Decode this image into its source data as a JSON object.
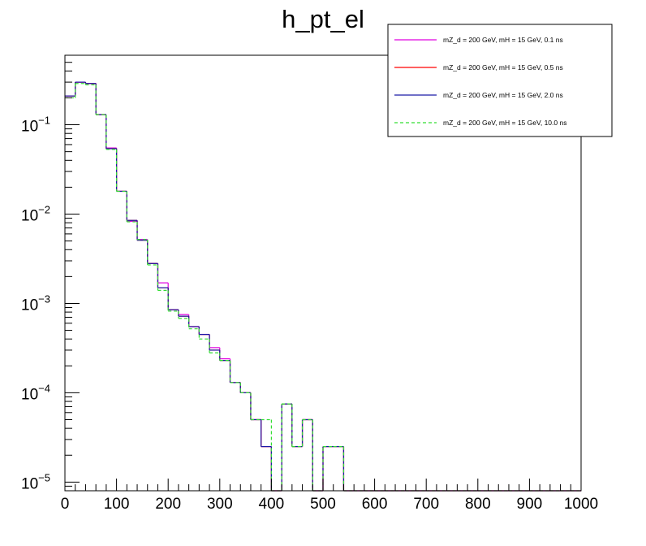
{
  "chart_data": {
    "type": "line",
    "style": "step-histogram",
    "title": "h_pt_el",
    "xlabel": "",
    "ylabel": "",
    "xlim": [
      0,
      1000
    ],
    "ylim": [
      8e-06,
      0.6
    ],
    "yscale": "log",
    "bin_width": 20,
    "x_ticks": [
      0,
      100,
      200,
      300,
      400,
      500,
      600,
      700,
      800,
      900,
      1000
    ],
    "x_tick_labels": [
      "0",
      "100",
      "200",
      "300",
      "400",
      "500",
      "600",
      "700",
      "800",
      "900",
      "1000"
    ],
    "y_tick_labels": [
      {
        "base": "10",
        "exp": "−1",
        "value": 0.1
      },
      {
        "base": "10",
        "exp": "−2",
        "value": 0.01
      },
      {
        "base": "10",
        "exp": "−3",
        "value": 0.001
      },
      {
        "base": "10",
        "exp": "−4",
        "value": 0.0001
      },
      {
        "base": "10",
        "exp": "−5",
        "value": 1e-05
      }
    ],
    "legend_position": "top-right",
    "series": [
      {
        "name": "mZ_d = 200 GeV, mH = 15 GeV, 0.1 ns",
        "color": "#e000e0",
        "dash": "solid",
        "values": [
          0.21,
          0.3,
          0.29,
          0.13,
          0.055,
          0.018,
          0.0083,
          0.0052,
          0.0028,
          0.0017,
          0.00085,
          0.00075,
          0.00055,
          0.00045,
          0.00032,
          0.00024,
          0.00013,
          0.0001,
          5e-05,
          2.5e-05,
          0,
          7.5e-05,
          2.5e-05,
          5e-05,
          0,
          2.5e-05,
          2.5e-05,
          0,
          0,
          0,
          0,
          0,
          0,
          0,
          0,
          0,
          0,
          0,
          0,
          0,
          0,
          0,
          0,
          0,
          0,
          0,
          0,
          0,
          0,
          0
        ]
      },
      {
        "name": "mZ_d = 200 GeV, mH = 15 GeV, 0.5 ns",
        "color": "#ff0000",
        "dash": "solid",
        "values": [
          0.21,
          0.3,
          0.29,
          0.13,
          0.054,
          0.018,
          0.0085,
          0.0051,
          0.0028,
          0.0015,
          0.00085,
          0.00072,
          0.00055,
          0.00045,
          0.0003,
          0.00023,
          0.00013,
          0.0001,
          5e-05,
          2.5e-05,
          0,
          7.5e-05,
          2.5e-05,
          5e-05,
          0,
          2.5e-05,
          2.5e-05,
          0,
          0,
          0,
          0,
          0,
          0,
          0,
          0,
          0,
          0,
          0,
          0,
          0,
          0,
          0,
          0,
          0,
          0,
          0,
          0,
          0,
          0,
          0
        ]
      },
      {
        "name": "mZ_d = 200 GeV, mH = 15 GeV, 2.0 ns",
        "color": "#1a1aa8",
        "dash": "solid",
        "values": [
          0.21,
          0.3,
          0.29,
          0.13,
          0.054,
          0.018,
          0.0085,
          0.0051,
          0.0028,
          0.0015,
          0.00085,
          0.00072,
          0.00055,
          0.00045,
          0.0003,
          0.00023,
          0.00013,
          0.0001,
          5e-05,
          2.5e-05,
          0,
          7.5e-05,
          2.5e-05,
          5e-05,
          0,
          2.5e-05,
          2.5e-05,
          0,
          0,
          0,
          0,
          0,
          0,
          0,
          0,
          0,
          0,
          0,
          0,
          0,
          0,
          0,
          0,
          0,
          0,
          0,
          0,
          0,
          0,
          0
        ]
      },
      {
        "name": "mZ_d = 200 GeV, mH = 15 GeV, 10.0 ns",
        "color": "#33dd33",
        "dash": "dashed",
        "values": [
          0.2,
          0.29,
          0.28,
          0.13,
          0.053,
          0.018,
          0.0082,
          0.0052,
          0.0027,
          0.0014,
          0.00082,
          0.00068,
          0.00052,
          0.0004,
          0.00028,
          0.00023,
          0.00013,
          0.0001,
          5e-05,
          5e-05,
          0,
          7.5e-05,
          2.5e-05,
          5e-05,
          0,
          2.5e-05,
          2.5e-05,
          0,
          0,
          0,
          0,
          0,
          0,
          0,
          0,
          0,
          0,
          0,
          0,
          0,
          0,
          0,
          0,
          0,
          0,
          0,
          0,
          0,
          0,
          0
        ]
      }
    ]
  }
}
